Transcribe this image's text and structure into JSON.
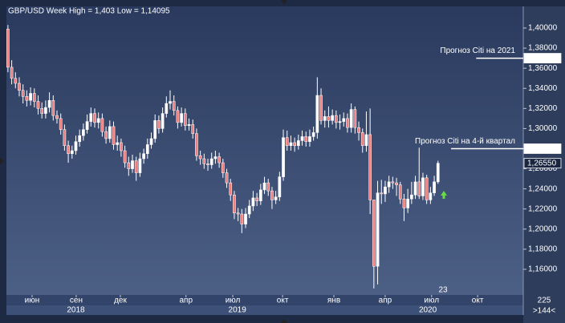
{
  "chart_data": {
    "type": "candlestick",
    "title": "GBP/USD Week High = 1,403 Low = 1,14095",
    "ylim": [
      1.1345,
      1.4215
    ],
    "xlim": [
      -0.4,
      136.6
    ],
    "yticks": [
      {
        "value": 1.16,
        "label": "1,16000"
      },
      {
        "value": 1.18,
        "label": "1,18000"
      },
      {
        "value": 1.2,
        "label": "1,20000"
      },
      {
        "value": 1.22,
        "label": "1,22000"
      },
      {
        "value": 1.24,
        "label": "1,24000"
      },
      {
        "value": 1.26,
        "label": "1,26000"
      },
      {
        "value": 1.28,
        "label": "1,28000"
      },
      {
        "value": 1.3,
        "label": "1,30000"
      },
      {
        "value": 1.32,
        "label": "1,32000"
      },
      {
        "value": 1.34,
        "label": "1,34000"
      },
      {
        "value": 1.36,
        "label": "1,36000"
      },
      {
        "value": 1.38,
        "label": "1,38000"
      },
      {
        "value": 1.4,
        "label": "1,40000"
      }
    ],
    "xticks": [
      {
        "value": 6.4,
        "label": "июн"
      },
      {
        "value": 18.1,
        "label": "сен"
      },
      {
        "value": 29.8,
        "label": "дек"
      },
      {
        "value": 47.2,
        "label": "апр"
      },
      {
        "value": 59.6,
        "label": "июл"
      },
      {
        "value": 72.8,
        "label": "окт"
      },
      {
        "value": 86.4,
        "label": "янв"
      },
      {
        "value": 100,
        "label": "апр"
      },
      {
        "value": 112.3,
        "label": "июл"
      },
      {
        "value": 124.5,
        "label": "окт"
      }
    ],
    "years": [
      {
        "value": 18,
        "label": "2018"
      },
      {
        "value": 60.8,
        "label": "2019"
      },
      {
        "value": 111.3,
        "label": "2020"
      }
    ],
    "up_color": "#ffffff",
    "down_color": "#f08080",
    "levels": [
      {
        "value": 1.37,
        "label": "1,37000",
        "note": "Прогноз Citi на 2021"
      },
      {
        "value": 1.28,
        "label": "1,28000",
        "note": "Прогноз Citi на 4-й квартал"
      },
      {
        "value": 1.2655,
        "label": "1,26550"
      }
    ],
    "counter": "23",
    "corner_top": "225",
    "corner_bottom": ">144<",
    "ohlc": [
      [
        1.399,
        1.403,
        1.356,
        1.361
      ],
      [
        1.361,
        1.368,
        1.344,
        1.35
      ],
      [
        1.35,
        1.356,
        1.34,
        1.345
      ],
      [
        1.345,
        1.351,
        1.332,
        1.338
      ],
      [
        1.338,
        1.344,
        1.325,
        1.332
      ],
      [
        1.332,
        1.338,
        1.322,
        1.328
      ],
      [
        1.328,
        1.341,
        1.323,
        1.335
      ],
      [
        1.335,
        1.34,
        1.321,
        1.327
      ],
      [
        1.327,
        1.333,
        1.314,
        1.32
      ],
      [
        1.32,
        1.326,
        1.31,
        1.315
      ],
      [
        1.315,
        1.328,
        1.31,
        1.321
      ],
      [
        1.321,
        1.336,
        1.316,
        1.328
      ],
      [
        1.328,
        1.333,
        1.308,
        1.313
      ],
      [
        1.313,
        1.318,
        1.305,
        1.31
      ],
      [
        1.31,
        1.315,
        1.294,
        1.299
      ],
      [
        1.299,
        1.304,
        1.278,
        1.283
      ],
      [
        1.283,
        1.288,
        1.266,
        1.275
      ],
      [
        1.275,
        1.283,
        1.27,
        1.278
      ],
      [
        1.278,
        1.293,
        1.274,
        1.287
      ],
      [
        1.287,
        1.299,
        1.282,
        1.293
      ],
      [
        1.293,
        1.305,
        1.288,
        1.299
      ],
      [
        1.299,
        1.314,
        1.295,
        1.307
      ],
      [
        1.307,
        1.321,
        1.302,
        1.315
      ],
      [
        1.315,
        1.32,
        1.301,
        1.306
      ],
      [
        1.306,
        1.316,
        1.3,
        1.31
      ],
      [
        1.31,
        1.315,
        1.292,
        1.297
      ],
      [
        1.297,
        1.302,
        1.285,
        1.29
      ],
      [
        1.29,
        1.308,
        1.286,
        1.302
      ],
      [
        1.302,
        1.307,
        1.279,
        1.284
      ],
      [
        1.284,
        1.293,
        1.278,
        1.286
      ],
      [
        1.286,
        1.29,
        1.272,
        1.278
      ],
      [
        1.278,
        1.283,
        1.261,
        1.266
      ],
      [
        1.266,
        1.272,
        1.253,
        1.26
      ],
      [
        1.26,
        1.274,
        1.256,
        1.268
      ],
      [
        1.268,
        1.272,
        1.248,
        1.256
      ],
      [
        1.256,
        1.276,
        1.252,
        1.27
      ],
      [
        1.27,
        1.28,
        1.265,
        1.275
      ],
      [
        1.275,
        1.29,
        1.27,
        1.284
      ],
      [
        1.284,
        1.296,
        1.28,
        1.29
      ],
      [
        1.29,
        1.314,
        1.286,
        1.308
      ],
      [
        1.308,
        1.313,
        1.295,
        1.3
      ],
      [
        1.3,
        1.321,
        1.296,
        1.315
      ],
      [
        1.315,
        1.332,
        1.311,
        1.325
      ],
      [
        1.325,
        1.338,
        1.319,
        1.327
      ],
      [
        1.327,
        1.333,
        1.313,
        1.318
      ],
      [
        1.318,
        1.322,
        1.3,
        1.306
      ],
      [
        1.306,
        1.321,
        1.302,
        1.315
      ],
      [
        1.315,
        1.32,
        1.298,
        1.303
      ],
      [
        1.303,
        1.31,
        1.298,
        1.304
      ],
      [
        1.304,
        1.309,
        1.29,
        1.295
      ],
      [
        1.295,
        1.3,
        1.268,
        1.273
      ],
      [
        1.273,
        1.278,
        1.264,
        1.27
      ],
      [
        1.27,
        1.275,
        1.26,
        1.265
      ],
      [
        1.265,
        1.27,
        1.258,
        1.264
      ],
      [
        1.264,
        1.276,
        1.26,
        1.27
      ],
      [
        1.27,
        1.278,
        1.265,
        1.272
      ],
      [
        1.272,
        1.276,
        1.261,
        1.266
      ],
      [
        1.266,
        1.27,
        1.251,
        1.256
      ],
      [
        1.256,
        1.26,
        1.241,
        1.246
      ],
      [
        1.246,
        1.25,
        1.228,
        1.234
      ],
      [
        1.234,
        1.238,
        1.21,
        1.216
      ],
      [
        1.216,
        1.221,
        1.208,
        1.215
      ],
      [
        1.215,
        1.22,
        1.196,
        1.205
      ],
      [
        1.205,
        1.221,
        1.201,
        1.215
      ],
      [
        1.215,
        1.229,
        1.211,
        1.223
      ],
      [
        1.223,
        1.238,
        1.218,
        1.231
      ],
      [
        1.231,
        1.236,
        1.223,
        1.228
      ],
      [
        1.228,
        1.245,
        1.224,
        1.239
      ],
      [
        1.239,
        1.252,
        1.235,
        1.246
      ],
      [
        1.246,
        1.25,
        1.233,
        1.238
      ],
      [
        1.238,
        1.242,
        1.22,
        1.229
      ],
      [
        1.229,
        1.238,
        1.225,
        1.232
      ],
      [
        1.232,
        1.257,
        1.228,
        1.252
      ],
      [
        1.252,
        1.299,
        1.248,
        1.291
      ],
      [
        1.291,
        1.298,
        1.278,
        1.283
      ],
      [
        1.283,
        1.293,
        1.278,
        1.286
      ],
      [
        1.286,
        1.291,
        1.277,
        1.283
      ],
      [
        1.283,
        1.294,
        1.279,
        1.288
      ],
      [
        1.288,
        1.298,
        1.283,
        1.292
      ],
      [
        1.292,
        1.297,
        1.282,
        1.287
      ],
      [
        1.287,
        1.299,
        1.282,
        1.292
      ],
      [
        1.292,
        1.302,
        1.288,
        1.296
      ],
      [
        1.296,
        1.351,
        1.29,
        1.333
      ],
      [
        1.333,
        1.34,
        1.304,
        1.308
      ],
      [
        1.308,
        1.318,
        1.301,
        1.312
      ],
      [
        1.312,
        1.322,
        1.301,
        1.308
      ],
      [
        1.308,
        1.319,
        1.304,
        1.313
      ],
      [
        1.313,
        1.318,
        1.3,
        1.306
      ],
      [
        1.306,
        1.314,
        1.299,
        1.307
      ],
      [
        1.307,
        1.316,
        1.302,
        1.31
      ],
      [
        1.31,
        1.315,
        1.296,
        1.301
      ],
      [
        1.301,
        1.325,
        1.296,
        1.319
      ],
      [
        1.319,
        1.322,
        1.295,
        1.301
      ],
      [
        1.301,
        1.307,
        1.288,
        1.296
      ],
      [
        1.296,
        1.3,
        1.276,
        1.283
      ],
      [
        1.283,
        1.317,
        1.277,
        1.294
      ],
      [
        1.294,
        1.32,
        1.215,
        1.229
      ],
      [
        1.229,
        1.228,
        1.14095,
        1.163
      ],
      [
        1.163,
        1.248,
        1.145,
        1.236
      ],
      [
        1.236,
        1.249,
        1.225,
        1.235
      ],
      [
        1.235,
        1.248,
        1.227,
        1.242
      ],
      [
        1.242,
        1.253,
        1.236,
        1.247
      ],
      [
        1.247,
        1.252,
        1.24,
        1.246
      ],
      [
        1.246,
        1.251,
        1.233,
        1.244
      ],
      [
        1.244,
        1.247,
        1.225,
        1.23
      ],
      [
        1.23,
        1.235,
        1.208,
        1.221
      ],
      [
        1.221,
        1.24,
        1.216,
        1.23
      ],
      [
        1.23,
        1.247,
        1.225,
        1.234
      ],
      [
        1.234,
        1.253,
        1.23,
        1.247
      ],
      [
        1.247,
        1.281,
        1.23,
        1.233
      ],
      [
        1.233,
        1.256,
        1.229,
        1.251
      ],
      [
        1.251,
        1.254,
        1.225,
        1.229
      ],
      [
        1.229,
        1.242,
        1.225,
        1.236
      ],
      [
        1.236,
        1.253,
        1.233,
        1.247
      ],
      [
        1.247,
        1.268,
        1.245,
        1.2655
      ]
    ]
  }
}
